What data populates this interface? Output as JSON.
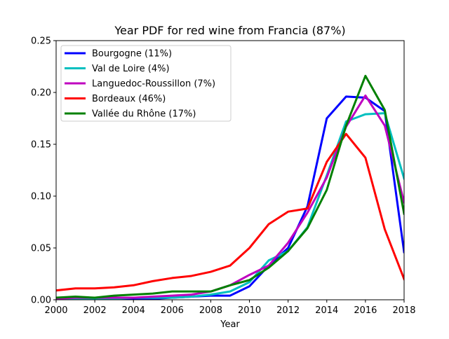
{
  "chart_data": {
    "type": "line",
    "title": "Year PDF for red wine from Francia (87%)",
    "xlabel": "Year",
    "ylabel": "",
    "xlim": [
      2000,
      2018
    ],
    "ylim": [
      0,
      0.25
    ],
    "xticks": [
      "2000",
      "2002",
      "2004",
      "2006",
      "2008",
      "2010",
      "2012",
      "2014",
      "2016",
      "2018"
    ],
    "yticks": [
      "0.00",
      "0.05",
      "0.10",
      "0.15",
      "0.20",
      "0.25"
    ],
    "grid": false,
    "legend_position": "top-left",
    "x": [
      2000,
      2001,
      2002,
      2003,
      2004,
      2005,
      2006,
      2007,
      2008,
      2009,
      2010,
      2011,
      2012,
      2013,
      2014,
      2015,
      2016,
      2017,
      2018
    ],
    "series": [
      {
        "name": "Bourgogne (11%)",
        "color": "#0000ff",
        "values": [
          0.002,
          0.002,
          0.001,
          0.001,
          0.001,
          0.001,
          0.002,
          0.003,
          0.004,
          0.004,
          0.013,
          0.033,
          0.05,
          0.09,
          0.175,
          0.196,
          0.195,
          0.182,
          0.046
        ]
      },
      {
        "name": "Val de Loire (4%)",
        "color": "#00bfbf",
        "values": [
          0.001,
          0.001,
          0.001,
          0.001,
          0.002,
          0.002,
          0.002,
          0.003,
          0.005,
          0.008,
          0.017,
          0.038,
          0.047,
          0.07,
          0.12,
          0.172,
          0.179,
          0.18,
          0.117
        ]
      },
      {
        "name": "Languedoc-Roussillon (7%)",
        "color": "#bf00bf",
        "values": [
          0.001,
          0.002,
          0.002,
          0.002,
          0.002,
          0.003,
          0.004,
          0.005,
          0.008,
          0.014,
          0.024,
          0.033,
          0.055,
          0.084,
          0.118,
          0.167,
          0.197,
          0.168,
          0.094
        ]
      },
      {
        "name": "Bordeaux (46%)",
        "color": "#ff0000",
        "values": [
          0.009,
          0.011,
          0.011,
          0.012,
          0.014,
          0.018,
          0.021,
          0.023,
          0.027,
          0.033,
          0.05,
          0.073,
          0.085,
          0.088,
          0.133,
          0.16,
          0.137,
          0.068,
          0.02
        ]
      },
      {
        "name": "Vallée du Rhône (17%)",
        "color": "#008000",
        "values": [
          0.002,
          0.003,
          0.002,
          0.004,
          0.005,
          0.006,
          0.008,
          0.008,
          0.008,
          0.014,
          0.019,
          0.031,
          0.047,
          0.069,
          0.106,
          0.168,
          0.216,
          0.183,
          0.083
        ]
      }
    ]
  }
}
